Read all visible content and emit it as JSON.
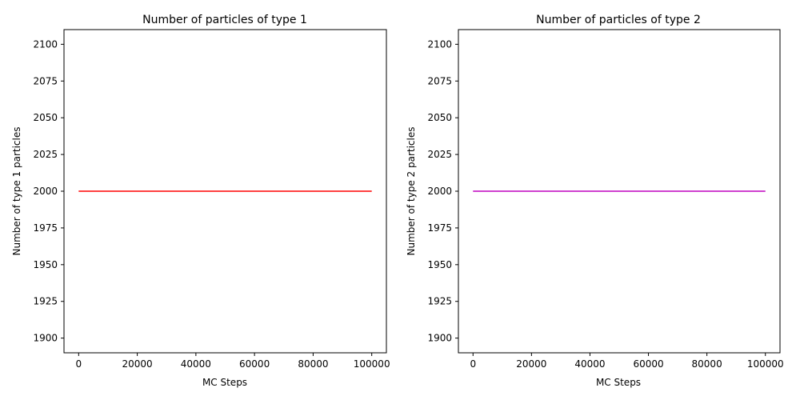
{
  "chart_data": [
    {
      "type": "line",
      "title": "Number of particles of type 1",
      "xlabel": "MC Steps",
      "ylabel": "Number of type 1 particles",
      "xlim": [
        -5000,
        105000
      ],
      "ylim": [
        1890,
        2110
      ],
      "x_ticks": [
        0,
        20000,
        40000,
        60000,
        80000,
        100000
      ],
      "y_ticks": [
        1900,
        1925,
        1950,
        1975,
        2000,
        2025,
        2050,
        2075,
        2100
      ],
      "grid": false,
      "series": [
        {
          "color": "#ff0000",
          "x": [
            0,
            100000
          ],
          "y": [
            2000,
            2000
          ]
        }
      ]
    },
    {
      "type": "line",
      "title": "Number of particles of type 2",
      "xlabel": "MC Steps",
      "ylabel": "Number of type 2 particles",
      "xlim": [
        -5000,
        105000
      ],
      "ylim": [
        1890,
        2110
      ],
      "x_ticks": [
        0,
        20000,
        40000,
        60000,
        80000,
        100000
      ],
      "y_ticks": [
        1900,
        1925,
        1950,
        1975,
        2000,
        2025,
        2050,
        2075,
        2100
      ],
      "grid": false,
      "series": [
        {
          "color": "#bf00bf",
          "x": [
            0,
            100000
          ],
          "y": [
            2000,
            2000
          ]
        }
      ]
    }
  ]
}
